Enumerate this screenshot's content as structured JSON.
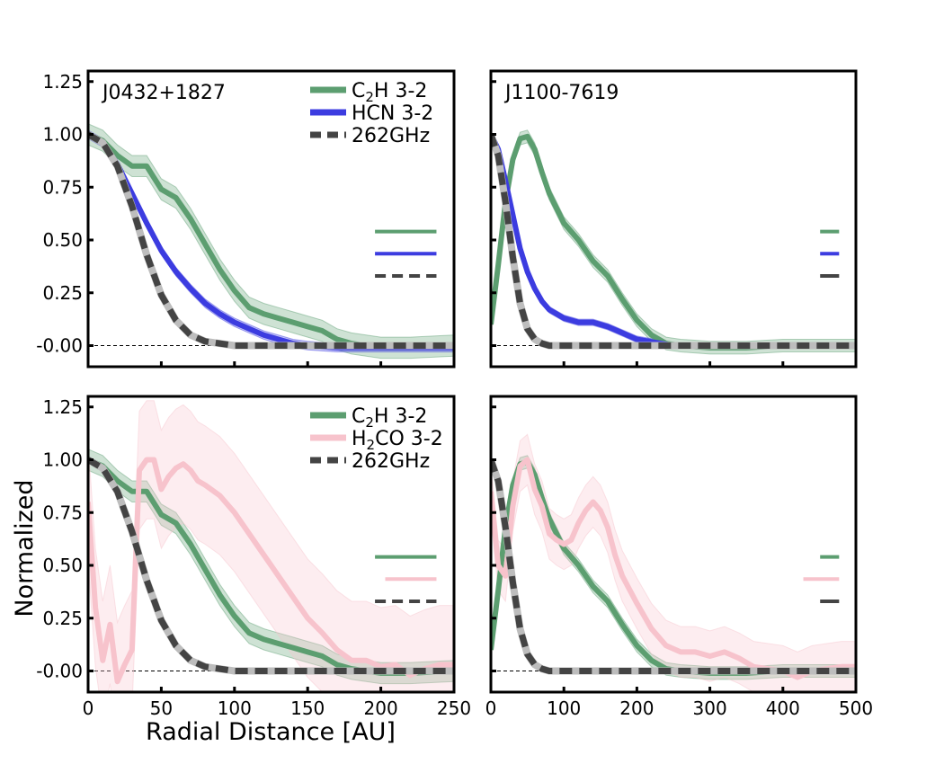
{
  "figure": {
    "ylabel": "Normalized",
    "xlabel": "Radial Distance [AU]"
  },
  "chart_data": [
    {
      "type": "line",
      "panel": "top-left",
      "title": "J0432+1827",
      "xlim": [
        0,
        250
      ],
      "ylim": [
        -0.1,
        1.3
      ],
      "xticks": [
        "0",
        "50",
        "100",
        "150",
        "200",
        "250"
      ],
      "yticks": [
        "-0.00",
        "0.25",
        "0.50",
        "0.75",
        "1.00",
        "1.25"
      ],
      "show_x_ticklabels": false,
      "show_y_ticklabels": true,
      "legend": "top-right",
      "series": [
        {
          "name": "C₂H 3-2",
          "legend_main": "C",
          "legend_sub": "2",
          "legend_tail": "H 3-2",
          "color": "#5c9e70",
          "style": "solid",
          "x": [
            0,
            10,
            20,
            30,
            40,
            50,
            60,
            70,
            80,
            90,
            100,
            110,
            120,
            130,
            140,
            150,
            160,
            170,
            180,
            200,
            220,
            250
          ],
          "y": [
            1.0,
            0.97,
            0.9,
            0.85,
            0.85,
            0.74,
            0.7,
            0.6,
            0.48,
            0.36,
            0.26,
            0.18,
            0.15,
            0.13,
            0.11,
            0.09,
            0.07,
            0.03,
            0.01,
            -0.01,
            -0.01,
            0.0
          ],
          "band": 0.05
        },
        {
          "name": "HCN 3-2",
          "legend_main": "HCN 3-2",
          "color": "#3c3ce0",
          "style": "solid",
          "x": [
            0,
            10,
            20,
            30,
            40,
            50,
            60,
            70,
            80,
            90,
            100,
            110,
            120,
            130,
            140,
            150,
            170,
            200,
            230,
            250
          ],
          "y": [
            1.0,
            0.96,
            0.86,
            0.72,
            0.58,
            0.45,
            0.35,
            0.27,
            0.2,
            0.15,
            0.11,
            0.08,
            0.05,
            0.03,
            0.01,
            0.0,
            -0.01,
            -0.01,
            -0.01,
            -0.01
          ],
          "band": 0.02
        },
        {
          "name": "262GHz",
          "legend_main": "262GHz",
          "color": "#444444",
          "style": "dashed",
          "x": [
            0,
            10,
            20,
            30,
            40,
            50,
            60,
            70,
            80,
            90,
            100,
            120,
            150,
            200,
            250
          ],
          "y": [
            1.0,
            0.96,
            0.85,
            0.66,
            0.43,
            0.24,
            0.12,
            0.05,
            0.02,
            0.01,
            0.0,
            0.0,
            0.0,
            0.0,
            0.0
          ],
          "band": 0.01
        }
      ],
      "resolution_bars": [
        {
          "color": "#5c9e70",
          "style": "solid",
          "x": [
            196,
            238
          ],
          "y": 0.54
        },
        {
          "color": "#3c3ce0",
          "style": "solid",
          "x": [
            196,
            238
          ],
          "y": 0.435
        },
        {
          "color": "#444444",
          "style": "dashed",
          "x": [
            196,
            238
          ],
          "y": 0.33
        }
      ]
    },
    {
      "type": "line",
      "panel": "top-right",
      "title": "J1100-7619",
      "xlim": [
        0,
        500
      ],
      "ylim": [
        -0.1,
        1.3
      ],
      "xticks": [
        "0",
        "100",
        "200",
        "300",
        "400",
        "500"
      ],
      "yticks": [
        "-0.00",
        "0.25",
        "0.50",
        "0.75",
        "1.00",
        "1.25"
      ],
      "show_x_ticklabels": false,
      "show_y_ticklabels": false,
      "series": [
        {
          "name": "C₂H 3-2",
          "color": "#5c9e70",
          "style": "solid",
          "x": [
            0,
            10,
            20,
            30,
            40,
            50,
            60,
            70,
            80,
            100,
            120,
            140,
            160,
            180,
            200,
            220,
            240,
            260,
            300,
            350,
            400,
            450,
            500
          ],
          "y": [
            0.1,
            0.38,
            0.68,
            0.88,
            0.98,
            0.99,
            0.93,
            0.82,
            0.72,
            0.58,
            0.5,
            0.4,
            0.33,
            0.22,
            0.12,
            0.05,
            0.01,
            0.0,
            -0.01,
            -0.01,
            0.0,
            0.0,
            0.0
          ],
          "band": 0.03
        },
        {
          "name": "HCN 3-2",
          "color": "#3c3ce0",
          "style": "solid",
          "x": [
            0,
            10,
            20,
            30,
            40,
            50,
            60,
            70,
            80,
            100,
            120,
            140,
            160,
            180,
            200,
            250,
            300,
            400,
            500
          ],
          "y": [
            1.0,
            0.93,
            0.78,
            0.62,
            0.46,
            0.35,
            0.27,
            0.21,
            0.17,
            0.13,
            0.11,
            0.11,
            0.09,
            0.06,
            0.03,
            0.0,
            0.0,
            0.0,
            0.0
          ],
          "band": 0.015
        },
        {
          "name": "262GHz",
          "color": "#444444",
          "style": "dashed",
          "x": [
            0,
            10,
            20,
            30,
            40,
            50,
            60,
            70,
            80,
            100,
            150,
            200,
            300,
            400,
            500
          ],
          "y": [
            1.0,
            0.9,
            0.68,
            0.42,
            0.2,
            0.08,
            0.03,
            0.01,
            0.0,
            0.0,
            0.0,
            0.0,
            0.0,
            0.0,
            0.0
          ],
          "band": 0.01
        }
      ],
      "resolution_bars": [
        {
          "color": "#5c9e70",
          "style": "solid",
          "x": [
            451,
            477
          ],
          "y": 0.54
        },
        {
          "color": "#3c3ce0",
          "style": "solid",
          "x": [
            451,
            477
          ],
          "y": 0.435
        },
        {
          "color": "#444444",
          "style": "solid",
          "x": [
            451,
            477
          ],
          "y": 0.33
        }
      ]
    },
    {
      "type": "line",
      "panel": "bottom-left",
      "title": "",
      "xlim": [
        0,
        250
      ],
      "ylim": [
        -0.1,
        1.3
      ],
      "xticks": [
        "0",
        "50",
        "100",
        "150",
        "200",
        "250"
      ],
      "yticks": [
        "-0.00",
        "0.25",
        "0.50",
        "0.75",
        "1.00",
        "1.25"
      ],
      "show_x_ticklabels": true,
      "show_y_ticklabels": true,
      "legend": "top-right",
      "series": [
        {
          "name": "C₂H 3-2",
          "legend_main": "C",
          "legend_sub": "2",
          "legend_tail": "H 3-2",
          "color": "#5c9e70",
          "style": "solid",
          "x": [
            0,
            10,
            20,
            30,
            40,
            50,
            60,
            70,
            80,
            90,
            100,
            110,
            120,
            130,
            140,
            150,
            160,
            170,
            180,
            200,
            220,
            250
          ],
          "y": [
            1.0,
            0.97,
            0.9,
            0.85,
            0.85,
            0.74,
            0.7,
            0.6,
            0.48,
            0.36,
            0.26,
            0.18,
            0.15,
            0.13,
            0.11,
            0.09,
            0.07,
            0.03,
            0.01,
            -0.01,
            -0.01,
            0.0
          ],
          "band": 0.05
        },
        {
          "name": "H₂CO 3-2",
          "legend_main": "H",
          "legend_sub": "2",
          "legend_tail": "CO 3-2",
          "color": "#f7c3cc",
          "style": "solid",
          "x": [
            0,
            5,
            10,
            15,
            20,
            25,
            30,
            35,
            40,
            45,
            50,
            55,
            60,
            65,
            70,
            75,
            80,
            90,
            100,
            110,
            120,
            130,
            140,
            150,
            160,
            170,
            180,
            190,
            200,
            210,
            220,
            230,
            240,
            250
          ],
          "y": [
            0.8,
            0.3,
            0.05,
            0.22,
            -0.05,
            0.03,
            0.1,
            0.95,
            1.0,
            1.0,
            0.86,
            0.92,
            0.96,
            0.98,
            0.95,
            0.9,
            0.88,
            0.83,
            0.75,
            0.65,
            0.55,
            0.45,
            0.35,
            0.25,
            0.18,
            0.1,
            0.05,
            0.05,
            0.02,
            0.03,
            -0.02,
            0.01,
            0.03,
            0.03
          ],
          "band": 0.28
        },
        {
          "name": "262GHz",
          "legend_main": "262GHz",
          "color": "#444444",
          "style": "dashed",
          "x": [
            0,
            10,
            20,
            30,
            40,
            50,
            60,
            70,
            80,
            90,
            100,
            120,
            150,
            200,
            250
          ],
          "y": [
            1.0,
            0.96,
            0.85,
            0.66,
            0.43,
            0.24,
            0.12,
            0.05,
            0.02,
            0.01,
            0.0,
            0.0,
            0.0,
            0.0,
            0.0
          ],
          "band": 0.01
        }
      ],
      "resolution_bars": [
        {
          "color": "#5c9e70",
          "style": "solid",
          "x": [
            196,
            238
          ],
          "y": 0.54
        },
        {
          "color": "#f7c3cc",
          "style": "solid",
          "x": [
            203,
            238
          ],
          "y": 0.435
        },
        {
          "color": "#444444",
          "style": "dashed",
          "x": [
            196,
            238
          ],
          "y": 0.33
        }
      ]
    },
    {
      "type": "line",
      "panel": "bottom-right",
      "title": "",
      "xlim": [
        0,
        500
      ],
      "ylim": [
        -0.1,
        1.3
      ],
      "xticks": [
        "0",
        "100",
        "200",
        "300",
        "400",
        "500"
      ],
      "yticks": [
        "-0.00",
        "0.25",
        "0.50",
        "0.75",
        "1.00",
        "1.25"
      ],
      "show_x_ticklabels": true,
      "show_y_ticklabels": false,
      "series": [
        {
          "name": "C₂H 3-2",
          "color": "#5c9e70",
          "style": "solid",
          "x": [
            0,
            10,
            20,
            30,
            40,
            50,
            60,
            70,
            80,
            100,
            120,
            140,
            160,
            180,
            200,
            220,
            240,
            260,
            300,
            350,
            400,
            450,
            500
          ],
          "y": [
            0.1,
            0.38,
            0.68,
            0.88,
            0.98,
            0.99,
            0.93,
            0.82,
            0.72,
            0.58,
            0.5,
            0.4,
            0.33,
            0.22,
            0.12,
            0.05,
            0.01,
            0.0,
            -0.01,
            -0.01,
            0.0,
            0.0,
            0.0
          ],
          "band": 0.03
        },
        {
          "name": "H₂CO 3-2",
          "color": "#f7c3cc",
          "style": "solid",
          "x": [
            0,
            10,
            20,
            30,
            40,
            50,
            60,
            70,
            80,
            90,
            100,
            110,
            120,
            130,
            140,
            150,
            160,
            170,
            180,
            200,
            220,
            240,
            260,
            280,
            300,
            320,
            340,
            360,
            380,
            400,
            420,
            440,
            460,
            480,
            500
          ],
          "y": [
            0.85,
            0.5,
            0.45,
            0.78,
            0.97,
            1.0,
            0.86,
            0.78,
            0.65,
            0.62,
            0.6,
            0.62,
            0.7,
            0.76,
            0.8,
            0.76,
            0.68,
            0.55,
            0.45,
            0.32,
            0.2,
            0.12,
            0.09,
            0.09,
            0.07,
            0.09,
            0.06,
            0.02,
            0.01,
            0.0,
            -0.03,
            0.0,
            0.01,
            0.02,
            0.02
          ],
          "band": 0.12
        },
        {
          "name": "262GHz",
          "color": "#444444",
          "style": "dashed",
          "x": [
            0,
            10,
            20,
            30,
            40,
            50,
            60,
            70,
            80,
            100,
            150,
            200,
            300,
            400,
            500
          ],
          "y": [
            1.0,
            0.9,
            0.68,
            0.42,
            0.2,
            0.08,
            0.03,
            0.01,
            0.0,
            0.0,
            0.0,
            0.0,
            0.0,
            0.0,
            0.0
          ],
          "band": 0.01
        }
      ],
      "resolution_bars": [
        {
          "color": "#5c9e70",
          "style": "solid",
          "x": [
            451,
            477
          ],
          "y": 0.54
        },
        {
          "color": "#f7c3cc",
          "style": "solid",
          "x": [
            428,
            477
          ],
          "y": 0.435
        },
        {
          "color": "#444444",
          "style": "solid",
          "x": [
            451,
            477
          ],
          "y": 0.33
        }
      ]
    }
  ]
}
